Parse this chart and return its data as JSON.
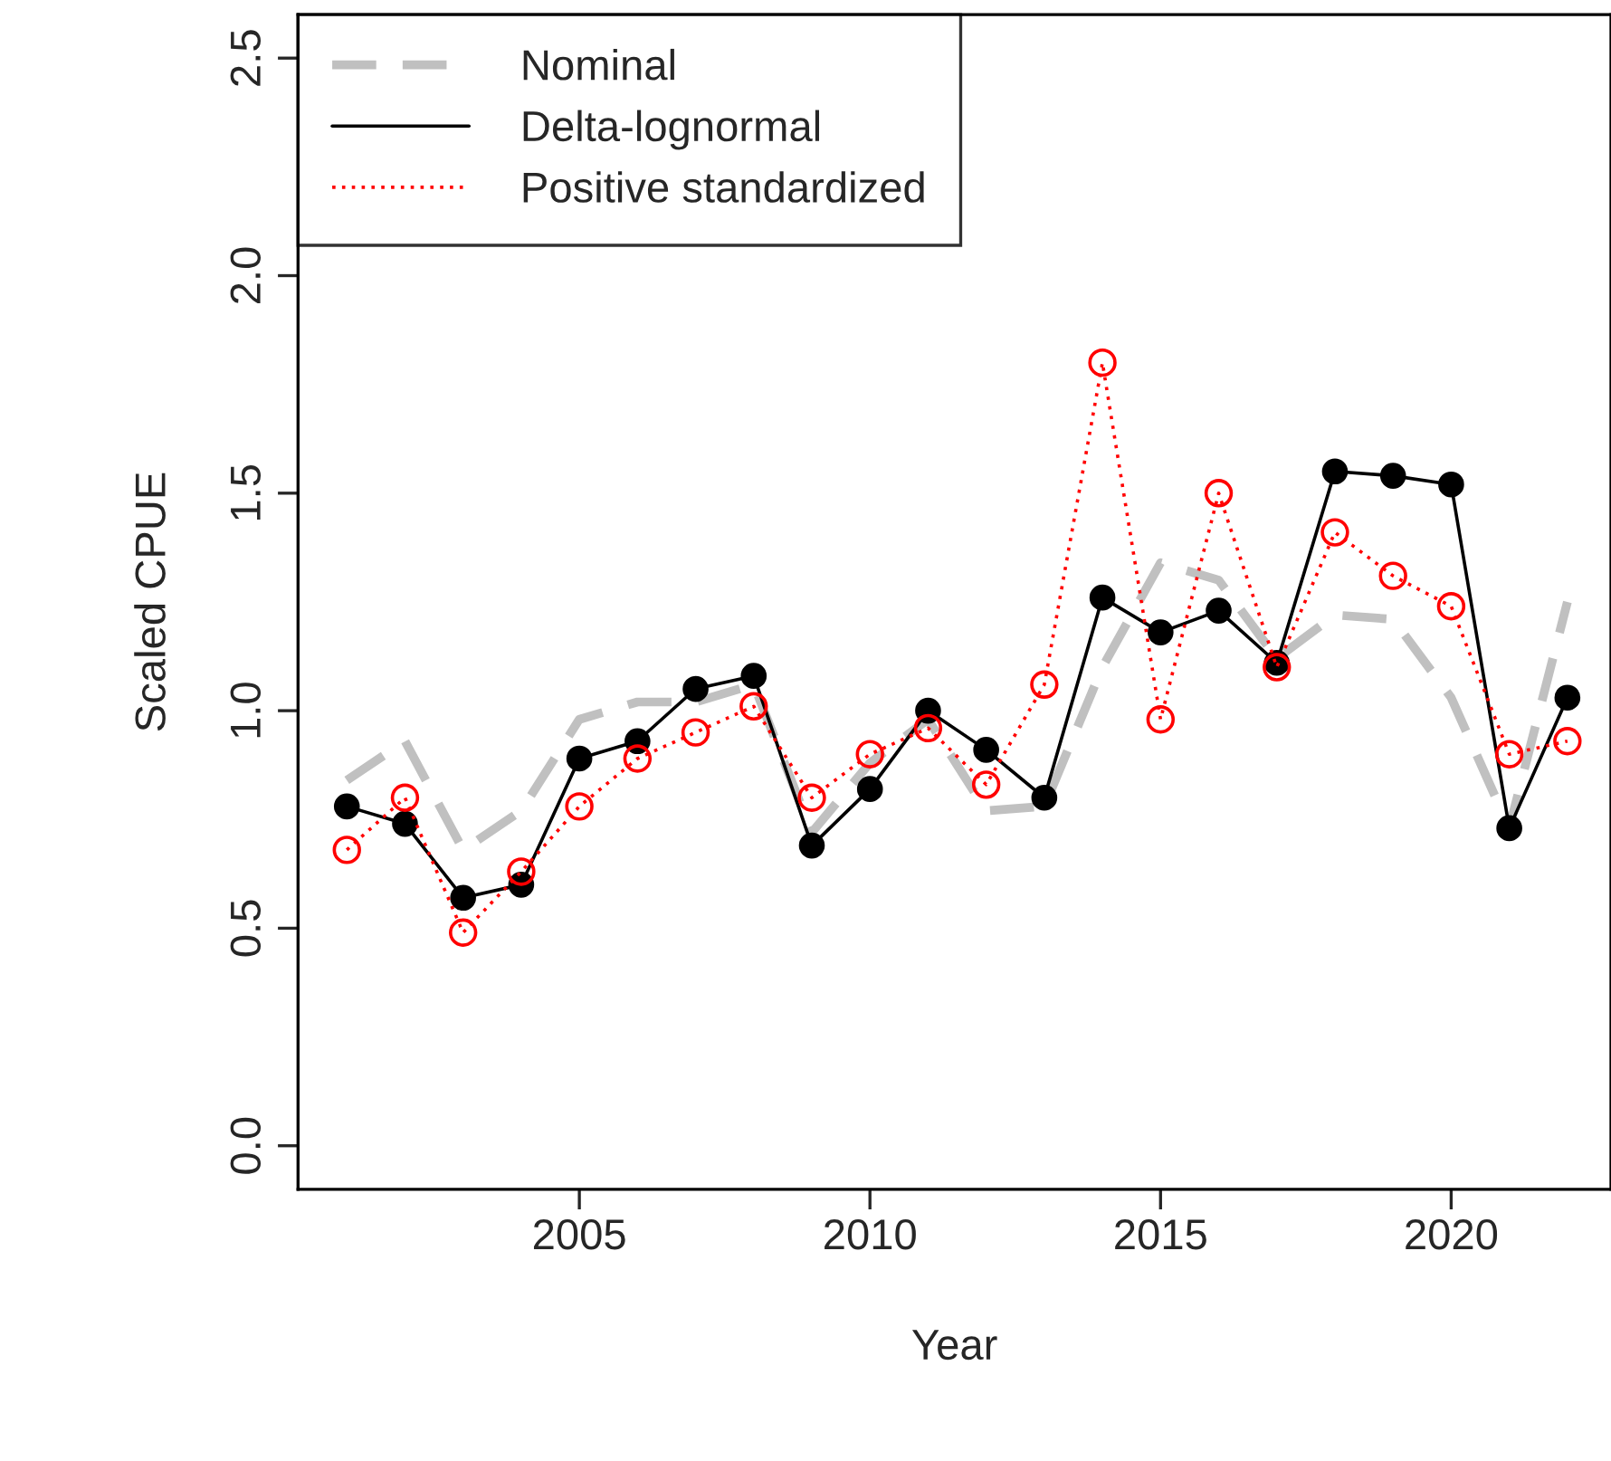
{
  "chart_data": {
    "type": "line",
    "xlabel": "Year",
    "ylabel": "Scaled CPUE",
    "x": [
      2001,
      2002,
      2003,
      2004,
      2005,
      2006,
      2007,
      2008,
      2009,
      2010,
      2011,
      2012,
      2013,
      2014,
      2015,
      2016,
      2017,
      2018,
      2019,
      2020,
      2021,
      2022
    ],
    "series": [
      {
        "name": "Nominal",
        "color": "#c0c0c0",
        "line_style": "dashed",
        "marker": "none",
        "values": [
          0.84,
          0.93,
          0.68,
          0.77,
          0.98,
          1.02,
          1.02,
          1.06,
          0.72,
          0.88,
          0.98,
          0.77,
          0.78,
          1.1,
          1.34,
          1.3,
          1.12,
          1.22,
          1.21,
          1.03,
          0.73,
          1.25
        ]
      },
      {
        "name": "Delta-lognormal",
        "color": "#000000",
        "line_style": "solid",
        "marker": "circle",
        "values": [
          0.78,
          0.74,
          0.57,
          0.6,
          0.89,
          0.93,
          1.05,
          1.08,
          0.69,
          0.82,
          1.0,
          0.91,
          0.8,
          1.26,
          1.18,
          1.23,
          1.11,
          1.55,
          1.54,
          1.52,
          0.73,
          1.03
        ]
      },
      {
        "name": "Positive standardized",
        "color": "#ff0000",
        "line_style": "dotted",
        "marker": "circle",
        "values": [
          0.68,
          0.8,
          0.49,
          0.63,
          0.78,
          0.89,
          0.95,
          1.01,
          0.8,
          0.9,
          0.96,
          0.83,
          1.06,
          1.8,
          0.98,
          1.5,
          1.1,
          1.41,
          1.31,
          1.24,
          0.9,
          0.93
        ]
      }
    ],
    "xlim": [
      2000.16,
      2022.75
    ],
    "ylim": [
      -0.1,
      2.6
    ],
    "xticks": [
      2005,
      2010,
      2015,
      2020
    ],
    "yticks": [
      {
        "value": 0,
        "label": "0.0"
      },
      {
        "value": 0.5,
        "label": "0.5"
      },
      {
        "value": 1,
        "label": "1.0"
      },
      {
        "value": 1.5,
        "label": "1.5"
      },
      {
        "value": 2,
        "label": "2.0"
      },
      {
        "value": 2.5,
        "label": "2.5"
      }
    ],
    "grid": false,
    "legend": "top left"
  }
}
